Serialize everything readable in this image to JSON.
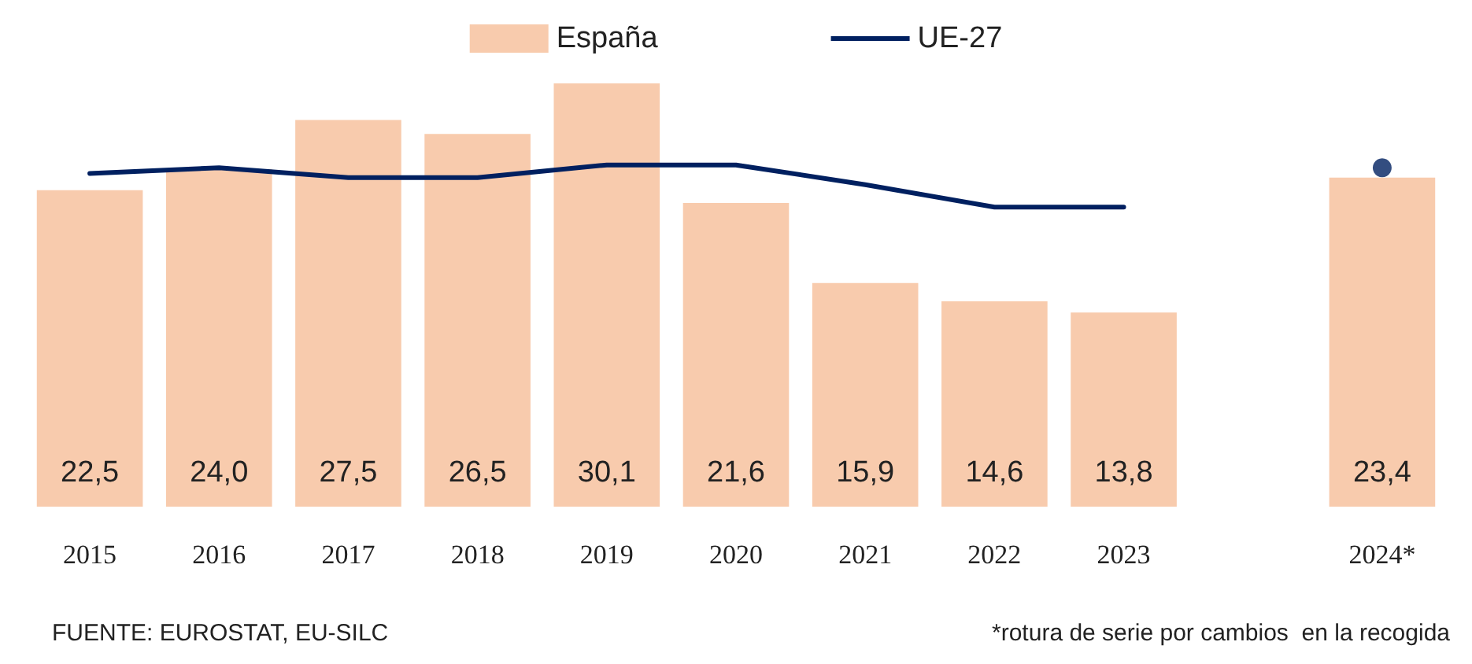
{
  "chart_data": {
    "type": "bar",
    "categories": [
      "2015",
      "2016",
      "2017",
      "2018",
      "2019",
      "2020",
      "2021",
      "2022",
      "2023",
      null,
      "2024*"
    ],
    "series": [
      {
        "name": "España",
        "color": "#f8cbad",
        "values": [
          22.5,
          24.0,
          27.5,
          26.5,
          30.1,
          21.6,
          15.9,
          14.6,
          13.8,
          null,
          23.4
        ],
        "value_labels": [
          "22,5",
          "24,0",
          "27,5",
          "26,5",
          "30,1",
          "21,6",
          "15,9",
          "14,6",
          "13,8",
          null,
          "23,4"
        ]
      },
      {
        "name": "UE-27",
        "type": "line",
        "color": "#002060",
        "marker": "none",
        "values": [
          23.7,
          24.1,
          23.4,
          23.4,
          24.3,
          24.3,
          22.9,
          21.3,
          21.3,
          null,
          null
        ]
      },
      {
        "type": "scatter",
        "color": "#002060",
        "marker": "circle",
        "values": [
          null,
          null,
          null,
          null,
          null,
          null,
          null,
          null,
          null,
          null,
          24.1
        ]
      }
    ],
    "legend": "top",
    "tick_labels": "x",
    "line_style": "solid",
    "annotations": [
      "FUENTE: EUROSTAT, EU-SILC",
      "*rotura de serie por cambios  en la recogida"
    ]
  }
}
